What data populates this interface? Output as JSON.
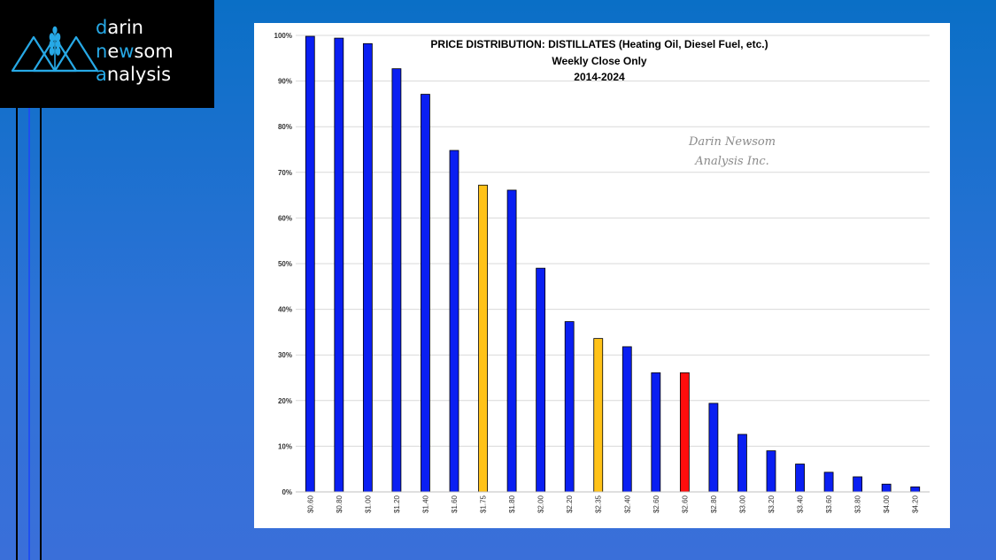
{
  "brand": {
    "logo_icon": "wheat-mountains-icon",
    "lines": [
      {
        "accent": "d",
        "rest": "arin"
      },
      {
        "accent": "n",
        "rest": "ewsom",
        "mid_accent": "w"
      },
      {
        "accent": "a",
        "rest": "nalysis"
      }
    ],
    "accent_color": "#27a9e6"
  },
  "watermark": {
    "line1": "Darin Newsom",
    "line2": "Analysis Inc."
  },
  "chart_data": {
    "type": "bar",
    "title": "PRICE DISTRIBUTION: DISTILLATES (Heating Oil, Diesel Fuel, etc.)",
    "subtitle": "Weekly Close Only",
    "subtitle2": "2014-2024",
    "categories": [
      "$0.60",
      "$0.80",
      "$1.00",
      "$1.20",
      "$1.40",
      "$1.60",
      "$1.75",
      "$1.80",
      "$2.00",
      "$2.20",
      "$2.35",
      "$2.40",
      "$2.60",
      "$2.60",
      "$2.80",
      "$3.00",
      "$3.20",
      "$3.40",
      "$3.60",
      "$3.80",
      "$4.00",
      "$4.20"
    ],
    "values": [
      99.8,
      99.4,
      98.2,
      92.7,
      87.1,
      74.8,
      67.2,
      66.1,
      49.0,
      37.3,
      33.6,
      31.8,
      26.1,
      26.1,
      19.4,
      12.6,
      9.0,
      6.1,
      4.3,
      3.3,
      1.7,
      1.1
    ],
    "colors": [
      "#0a1ff2",
      "#0a1ff2",
      "#0a1ff2",
      "#0a1ff2",
      "#0a1ff2",
      "#0a1ff2",
      "#ffc218",
      "#0a1ff2",
      "#0a1ff2",
      "#0a1ff2",
      "#ffc218",
      "#0a1ff2",
      "#0a1ff2",
      "#ff0d0d",
      "#0a1ff2",
      "#0a1ff2",
      "#0a1ff2",
      "#0a1ff2",
      "#0a1ff2",
      "#0a1ff2",
      "#0a1ff2",
      "#0a1ff2"
    ],
    "yticks": [
      "0%",
      "10%",
      "20%",
      "30%",
      "40%",
      "50%",
      "60%",
      "70%",
      "80%",
      "90%",
      "100%"
    ],
    "ylim": [
      0,
      100
    ],
    "grid": true,
    "legend": "none"
  }
}
